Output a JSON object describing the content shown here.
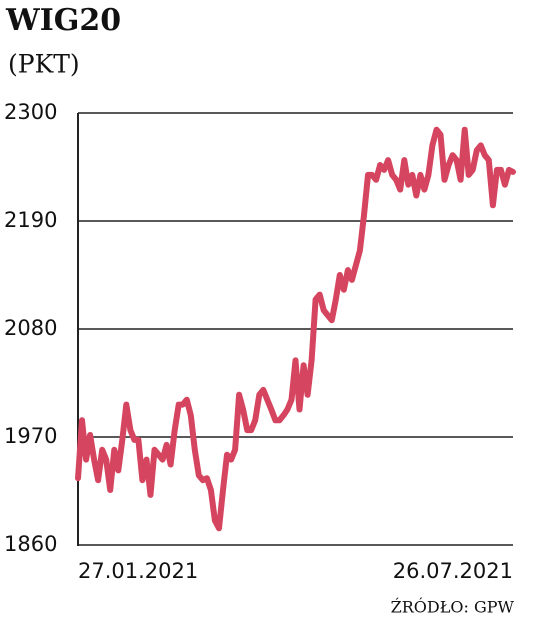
{
  "chart_data": {
    "type": "line",
    "title": "WIG20",
    "subtitle": "(PKT)",
    "source": "ŹRÓDŁO: GPW",
    "categories": [
      "27.01.2021",
      null,
      null,
      null,
      null,
      null,
      null,
      null,
      null,
      null,
      null,
      null,
      null,
      null,
      null,
      null,
      null,
      null,
      null,
      null,
      null,
      null,
      null,
      null,
      null,
      null,
      null,
      null,
      null,
      null,
      null,
      null,
      null,
      null,
      null,
      null,
      null,
      null,
      null,
      null,
      null,
      null,
      null,
      null,
      null,
      null,
      null,
      null,
      null,
      null,
      null,
      null,
      null,
      null,
      null,
      null,
      null,
      null,
      null,
      null,
      null,
      null,
      null,
      null,
      null,
      null,
      null,
      null,
      null,
      null,
      null,
      null,
      null,
      null,
      null,
      null,
      null,
      null,
      null,
      null,
      null,
      null,
      null,
      null,
      null,
      null,
      null,
      null,
      null,
      null,
      null,
      null,
      null,
      null,
      null,
      null,
      null,
      null,
      null,
      null,
      null,
      null,
      null,
      null,
      null,
      null,
      null,
      null,
      "26.07.2021"
    ],
    "values": [
      1928,
      1987,
      1947,
      1972,
      1947,
      1926,
      1957,
      1947,
      1916,
      1957,
      1936,
      1967,
      2003,
      1977,
      1967,
      1967,
      1926,
      1947,
      1911,
      1957,
      1952,
      1947,
      1962,
      1942,
      1977,
      2003,
      2003,
      2008,
      1992,
      1957,
      1931,
      1926,
      1928,
      1916,
      1885,
      1877,
      1916,
      1952,
      1947,
      1957,
      2013,
      1998,
      1977,
      1977,
      1987,
      2013,
      2018,
      2008,
      1998,
      1987,
      1987,
      1992,
      1998,
      2008,
      2048,
      1998,
      2043,
      2013,
      2048,
      2110,
      2115,
      2099,
      2094,
      2089,
      2110,
      2135,
      2120,
      2140,
      2130,
      2145,
      2160,
      2196,
      2237,
      2237,
      2232,
      2247,
      2242,
      2252,
      2237,
      2232,
      2222,
      2252,
      2227,
      2237,
      2216,
      2237,
      2222,
      2237,
      2267,
      2283,
      2278,
      2232,
      2247,
      2257,
      2252,
      2232,
      2283,
      2237,
      2242,
      2262,
      2267,
      2257,
      2252,
      2206,
      2242,
      2242,
      2227,
      2242,
      2240
    ],
    "color": "#d6455f",
    "ylim": [
      1860,
      2300
    ],
    "yticks": [
      1860,
      1970,
      2080,
      2190,
      2300
    ],
    "grid": true
  }
}
